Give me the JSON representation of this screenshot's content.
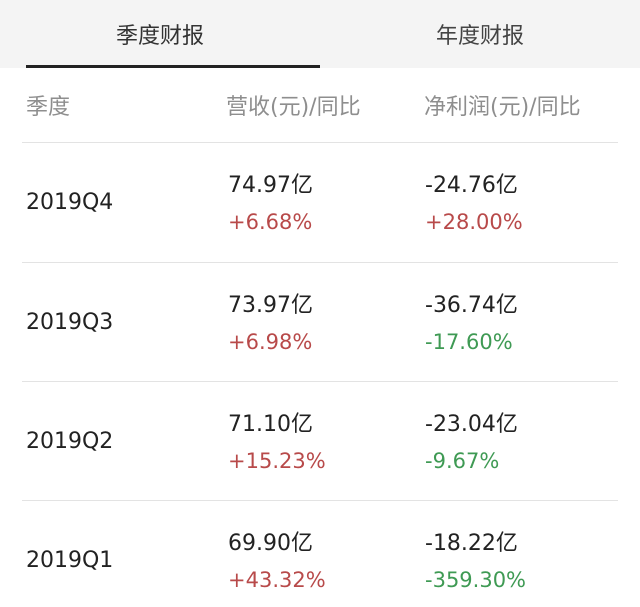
{
  "tabs": {
    "quarterly": "季度财报",
    "annual": "年度财报"
  },
  "headers": {
    "period": "季度",
    "revenue": "营收(元)/同比",
    "net_profit": "净利润(元)/同比"
  },
  "rows": [
    {
      "period": "2019Q4",
      "revenue": "74.97亿",
      "revenue_yoy": "+6.68%",
      "net_profit": "-24.76亿",
      "net_profit_yoy": "+28.00%"
    },
    {
      "period": "2019Q3",
      "revenue": "73.97亿",
      "revenue_yoy": "+6.98%",
      "net_profit": "-36.74亿",
      "net_profit_yoy": "-17.60%"
    },
    {
      "period": "2019Q2",
      "revenue": "71.10亿",
      "revenue_yoy": "+15.23%",
      "net_profit": "-23.04亿",
      "net_profit_yoy": "-9.67%"
    },
    {
      "period": "2019Q1",
      "revenue": "69.90亿",
      "revenue_yoy": "+43.32%",
      "net_profit": "-18.22亿",
      "net_profit_yoy": "-359.30%"
    }
  ],
  "colors": {
    "positive": "#b84a4a",
    "negative": "#3f9a54"
  }
}
